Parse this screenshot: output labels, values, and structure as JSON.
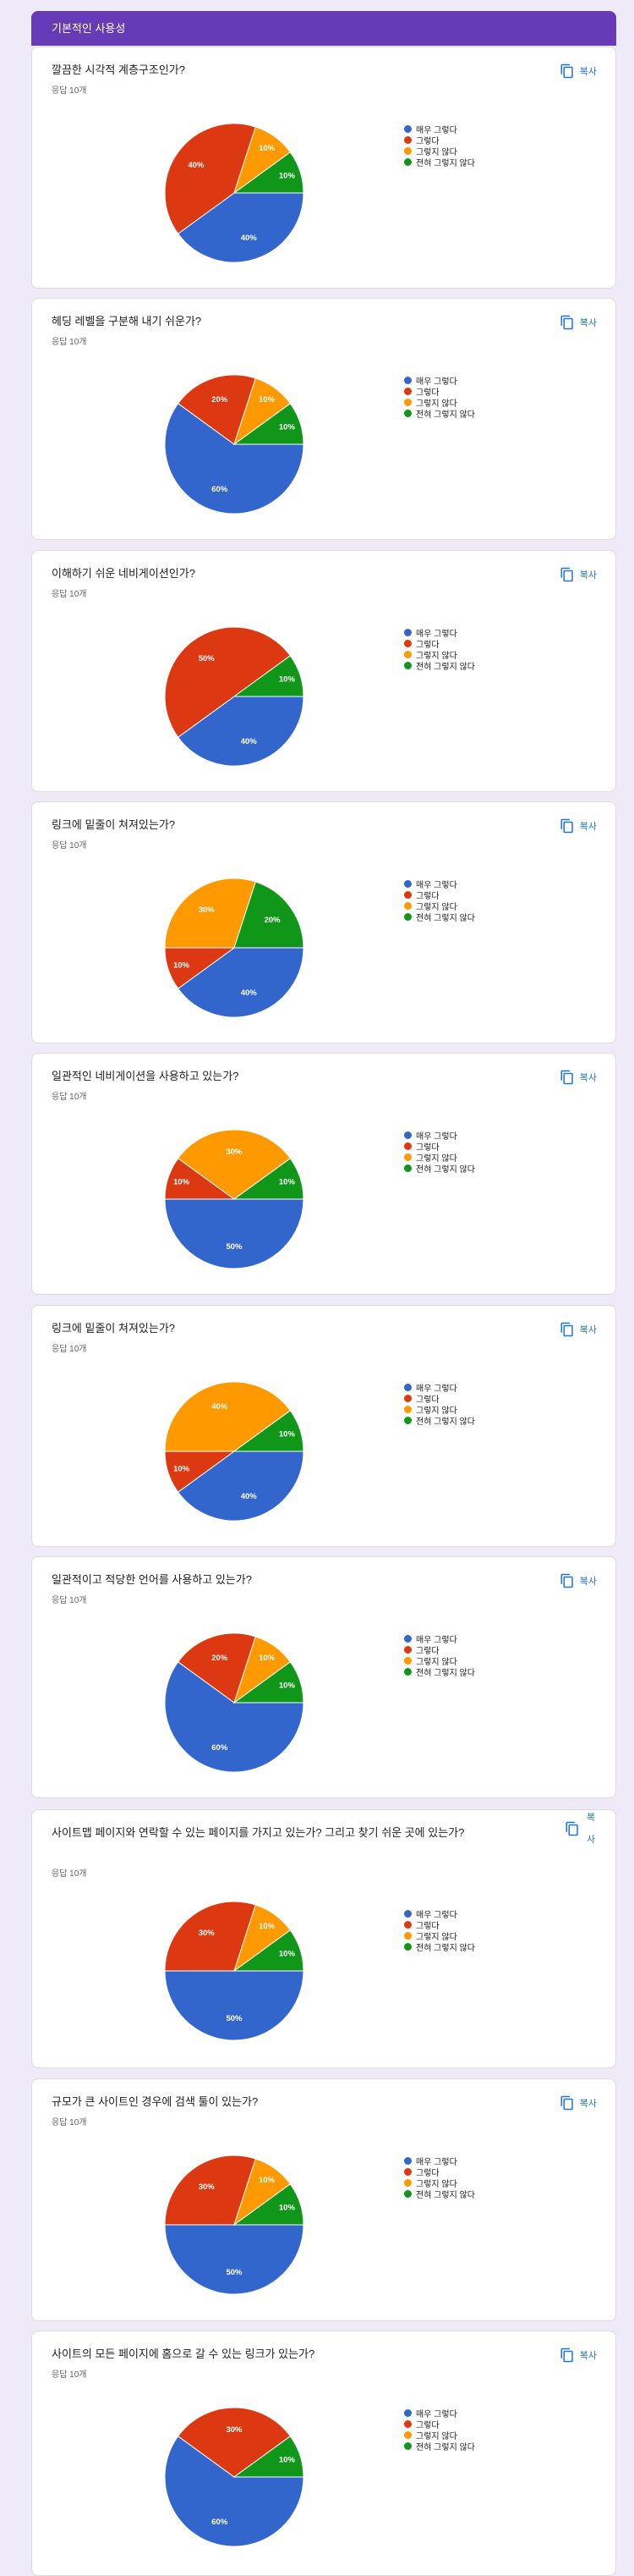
{
  "section": {
    "title": "기본적인 사용성"
  },
  "copy_label": "복사",
  "legend": [
    {
      "label": "매우 그렇다",
      "color": "#3366cc"
    },
    {
      "label": "그렇다",
      "color": "#dc3912"
    },
    {
      "label": "그렇지 않다",
      "color": "#ff9900"
    },
    {
      "label": "전혀 그렇지 않다",
      "color": "#109618"
    }
  ],
  "questions": [
    {
      "title": "깔끔한 시각적 계층구조인가?",
      "count": "응답 10개",
      "chart_data": {
        "type": "pie",
        "labels": [
          "매우 그렇다",
          "그렇다",
          "그렇지 않다",
          "전혀 그렇지 않다"
        ],
        "values": [
          40,
          40,
          10,
          10
        ]
      }
    },
    {
      "title": "헤딩 레벨을 구분해 내기 쉬운가?",
      "count": "응답 10개",
      "chart_data": {
        "type": "pie",
        "labels": [
          "매우 그렇다",
          "그렇다",
          "그렇지 않다",
          "전혀 그렇지 않다"
        ],
        "values": [
          60,
          20,
          10,
          10
        ]
      }
    },
    {
      "title": "이해하기 쉬운 네비게이션인가?",
      "count": "응답 10개",
      "chart_data": {
        "type": "pie",
        "labels": [
          "매우 그렇다",
          "그렇다",
          "그렇지 않다",
          "전혀 그렇지 않다"
        ],
        "values": [
          40,
          50,
          0,
          10
        ]
      }
    },
    {
      "title": "링크에 밑줄이 쳐져있는가?",
      "count": "응답 10개",
      "chart_data": {
        "type": "pie",
        "labels": [
          "매우 그렇다",
          "그렇다",
          "그렇지 않다",
          "전혀 그렇지 않다"
        ],
        "values": [
          40,
          10,
          30,
          20
        ]
      }
    },
    {
      "title": "일관적인 네비게이션을 사용하고 있는가?",
      "count": "응답 10개",
      "chart_data": {
        "type": "pie",
        "labels": [
          "매우 그렇다",
          "그렇다",
          "그렇지 않다",
          "전혀 그렇지 않다"
        ],
        "values": [
          50,
          10,
          30,
          10
        ]
      }
    },
    {
      "title": "링크에 밑줄이 쳐져있는가?",
      "count": "응답 10개",
      "chart_data": {
        "type": "pie",
        "labels": [
          "매우 그렇다",
          "그렇다",
          "그렇지 않다",
          "전혀 그렇지 않다"
        ],
        "values": [
          40,
          10,
          40,
          10
        ]
      }
    },
    {
      "title": "일관적이고 적당한 언어를 사용하고 있는가?",
      "count": "응답 10개",
      "chart_data": {
        "type": "pie",
        "labels": [
          "매우 그렇다",
          "그렇다",
          "그렇지 않다",
          "전혀 그렇지 않다"
        ],
        "values": [
          60,
          20,
          10,
          10
        ]
      }
    },
    {
      "title": "사이트맵 페이지와 연락할 수 있는 페이지를 가지고 있는가? 그리고 찾기 쉬운 곳에 있는가?",
      "count": "응답 10개",
      "chart_data": {
        "type": "pie",
        "labels": [
          "매우 그렇다",
          "그렇다",
          "그렇지 않다",
          "전혀 그렇지 않다"
        ],
        "values": [
          50,
          30,
          10,
          10
        ]
      }
    },
    {
      "title": "규모가 큰 사이트인 경우에 검색 툴이 있는가?",
      "count": "응답 10개",
      "chart_data": {
        "type": "pie",
        "labels": [
          "매우 그렇다",
          "그렇다",
          "그렇지 않다",
          "전혀 그렇지 않다"
        ],
        "values": [
          50,
          30,
          10,
          10
        ]
      }
    },
    {
      "title": "사이트의 모든 페이지에 홈으로 갈 수 있는 링크가 있는가?",
      "count": "응답 10개",
      "chart_data": {
        "type": "pie",
        "labels": [
          "매우 그렇다",
          "그렇다",
          "그렇지 않다",
          "전혀 그렇지 않다"
        ],
        "values": [
          60,
          30,
          0,
          10
        ]
      }
    }
  ]
}
